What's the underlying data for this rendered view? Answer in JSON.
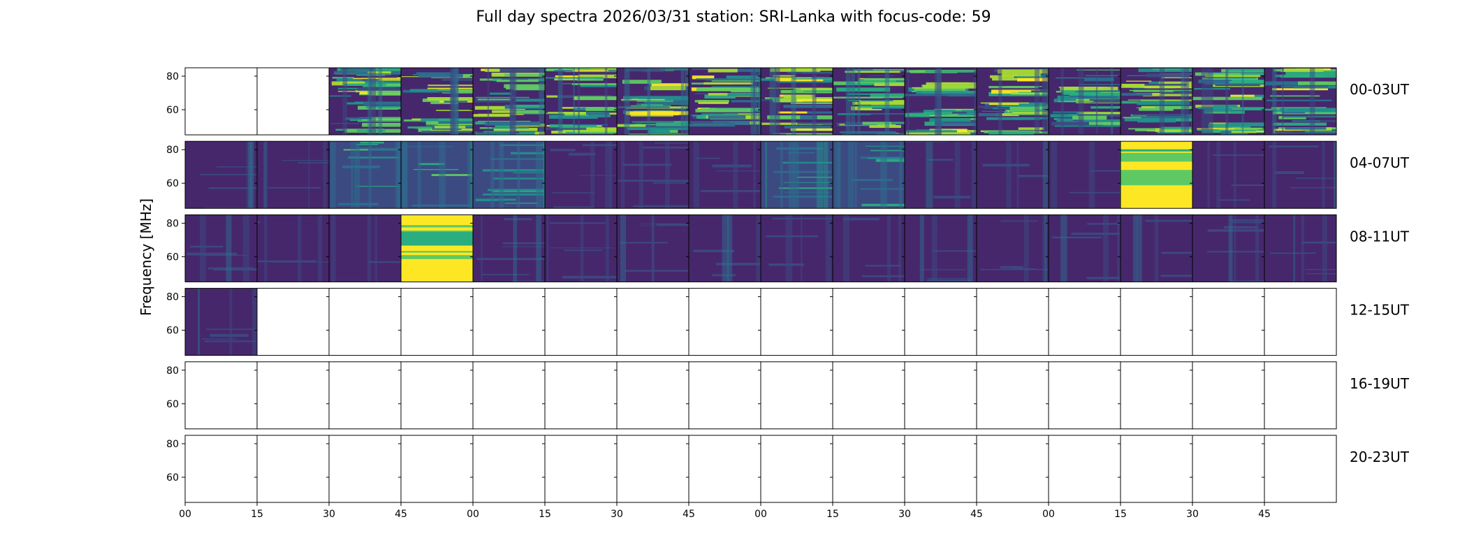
{
  "title": "Full day spectra 2026/03/31 station: SRI-Lanka with focus-code: 59",
  "colors": {
    "background": "#ffffff",
    "frame": "#000000",
    "viridis_low": "#440154",
    "viridis_mid": "#21918c",
    "viridis_high": "#fde725"
  },
  "chart_data": {
    "type": "heatmap",
    "title": "Full day spectra 2026/03/31 station: SRI-Lanka with focus-code: 59",
    "ylabel": "Frequency [MHz]",
    "xlabel": "",
    "ylim": [
      45,
      85
    ],
    "yticks": [
      60,
      80
    ],
    "ytick_labels": [
      "60",
      "80"
    ],
    "xtick_labels": [
      "00",
      "15",
      "30",
      "45",
      "00",
      "15",
      "30",
      "45",
      "00",
      "15",
      "30",
      "45",
      "00",
      "15",
      "30",
      "45"
    ],
    "row_labels": [
      "00-03UT",
      "04-07UT",
      "08-11UT",
      "12-15UT",
      "16-19UT",
      "20-23UT"
    ],
    "panels_per_row": 16,
    "minutes_per_panel": 15,
    "panel_intensity": [
      [
        "none",
        "none",
        "busy",
        "busy",
        "busy",
        "busy",
        "busy",
        "busy",
        "busy",
        "busy",
        "busy",
        "busy",
        "busy",
        "busy",
        "busy",
        "busy"
      ],
      [
        "low",
        "low",
        "medium",
        "medium",
        "medium",
        "low",
        "low",
        "low",
        "medium",
        "medium",
        "low",
        "low",
        "low",
        "saturated",
        "low",
        "low"
      ],
      [
        "low",
        "low",
        "low",
        "saturated",
        "low",
        "low",
        "low",
        "low",
        "low",
        "low",
        "low",
        "low",
        "low",
        "low",
        "low",
        "low"
      ],
      [
        "low",
        "none",
        "none",
        "none",
        "none",
        "none",
        "none",
        "none",
        "none",
        "none",
        "none",
        "none",
        "none",
        "none",
        "none",
        "none"
      ],
      [
        "none",
        "none",
        "none",
        "none",
        "none",
        "none",
        "none",
        "none",
        "none",
        "none",
        "none",
        "none",
        "none",
        "none",
        "none",
        "none"
      ],
      [
        "none",
        "none",
        "none",
        "none",
        "none",
        "none",
        "none",
        "none",
        "none",
        "none",
        "none",
        "none",
        "none",
        "none",
        "none",
        "none"
      ]
    ]
  }
}
